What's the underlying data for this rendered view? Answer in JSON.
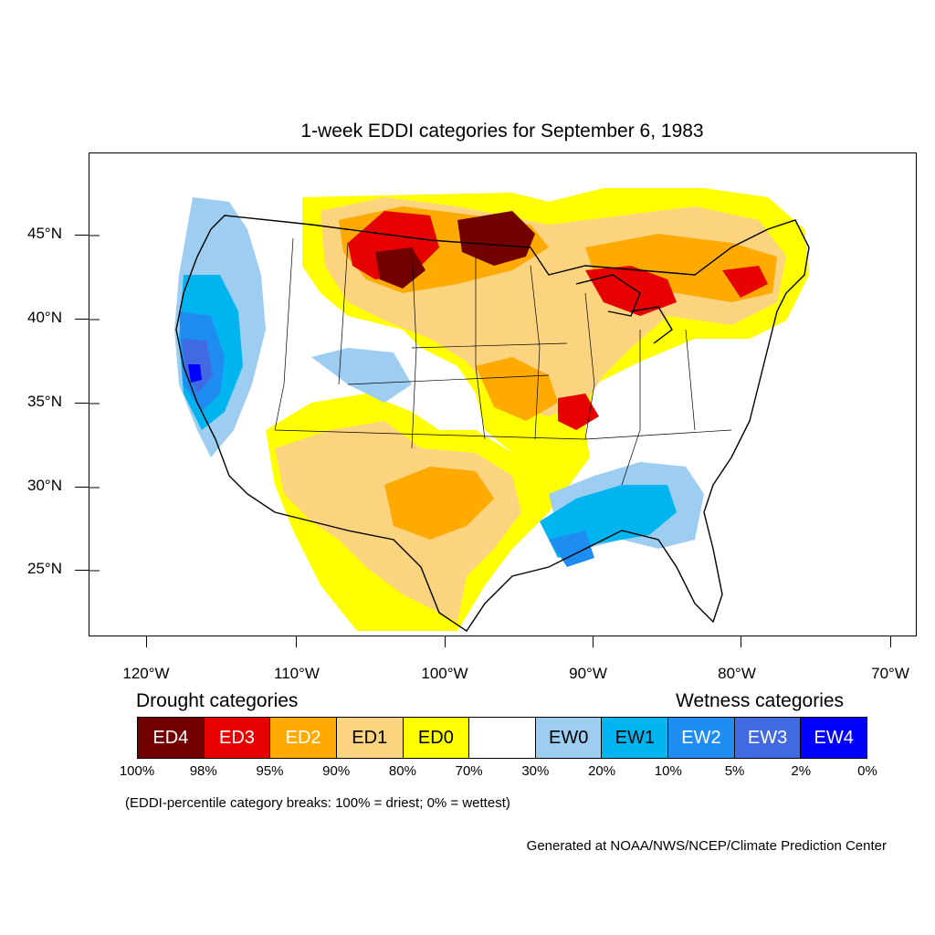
{
  "title": "1-week EDDI categories for September 6, 1983",
  "lat_labels": [
    "45°N",
    "40°N",
    "35°N",
    "30°N",
    "25°N"
  ],
  "lon_labels": [
    "120°W",
    "110°W",
    "100°W",
    "90°W",
    "80°W",
    "70°W"
  ],
  "drought_heading": "Drought categories",
  "wetness_heading": "Wetness categories",
  "legend": [
    {
      "label": "ED4",
      "color": "#730000",
      "text_color": "#ffffff"
    },
    {
      "label": "ED3",
      "color": "#e60000",
      "text_color": "#ffffff"
    },
    {
      "label": "ED2",
      "color": "#ffaa00",
      "text_color": "#ffffff"
    },
    {
      "label": "ED1",
      "color": "#fcd37f",
      "text_color": "#000000"
    },
    {
      "label": "ED0",
      "color": "#ffff00",
      "text_color": "#000000"
    },
    {
      "label": "",
      "color": "#ffffff",
      "text_color": "#000000"
    },
    {
      "label": "EW0",
      "color": "#9dcef1",
      "text_color": "#000000"
    },
    {
      "label": "EW1",
      "color": "#00b4f0",
      "text_color": "#000000"
    },
    {
      "label": "EW2",
      "color": "#1e8cf0",
      "text_color": "#ffffff"
    },
    {
      "label": "EW3",
      "color": "#4169e1",
      "text_color": "#ffffff"
    },
    {
      "label": "EW4",
      "color": "#0000ff",
      "text_color": "#ffffff"
    }
  ],
  "percentiles": [
    "100%",
    "98%",
    "95%",
    "90%",
    "80%",
    "70%",
    "30%",
    "20%",
    "10%",
    "5%",
    "2%",
    "0%"
  ],
  "note": "(EDDI-percentile category breaks: 100% = driest; 0% = wettest)",
  "credit": "Generated at NOAA/NWS/NCEP/Climate Prediction Center"
}
